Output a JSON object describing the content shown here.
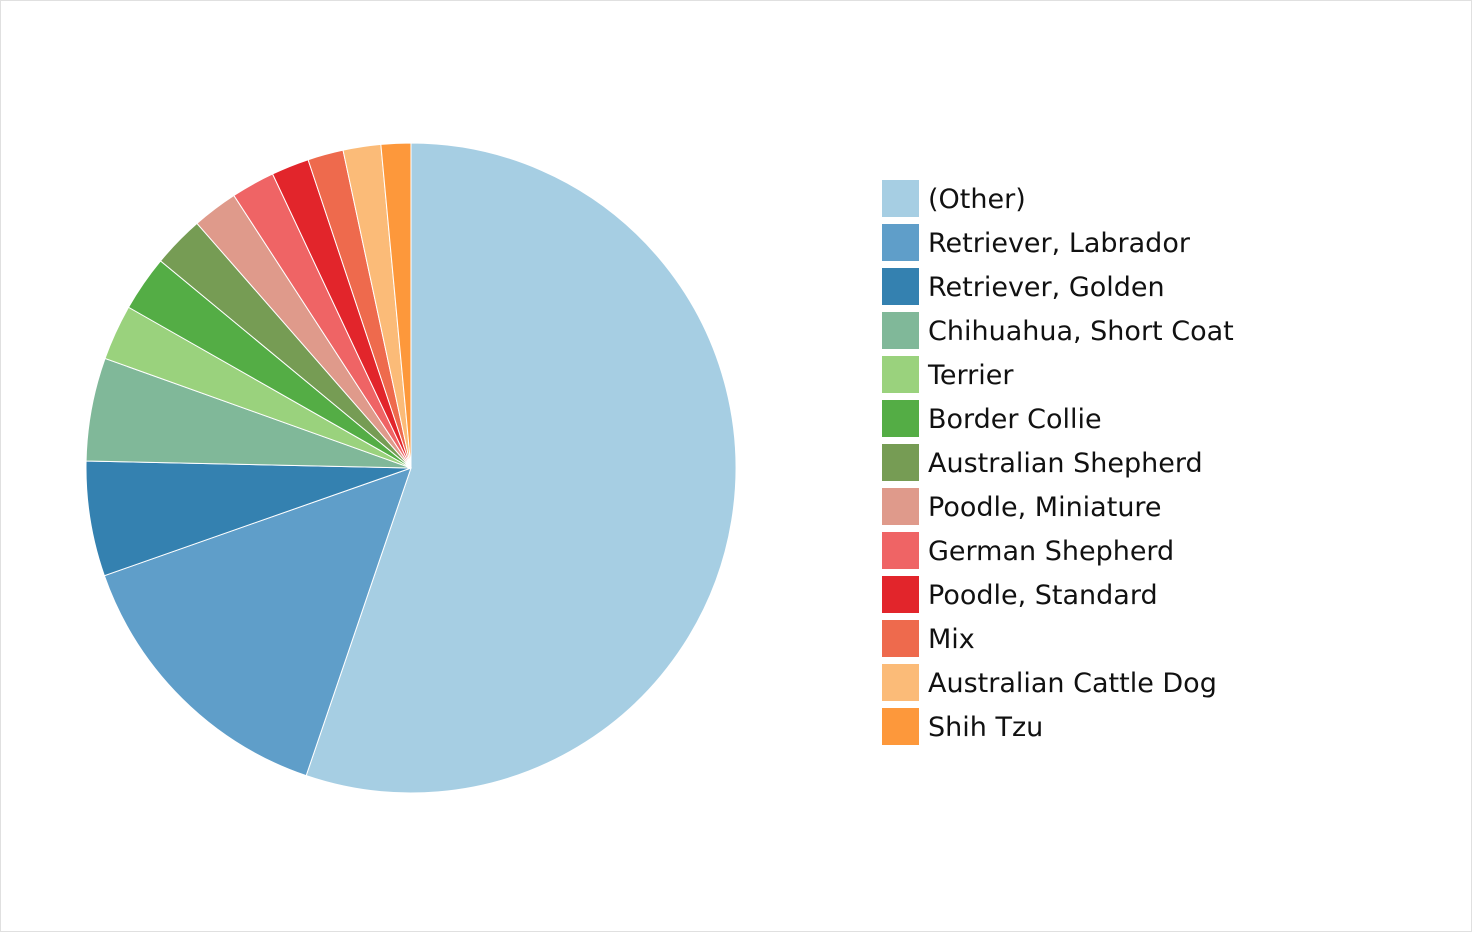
{
  "chart_data": {
    "type": "pie",
    "title": "",
    "start_angle_deg": 0,
    "direction": "clockwise",
    "slices": [
      {
        "label": "(Other)",
        "value": 56.0,
        "color": "#a6cee3"
      },
      {
        "label": "Retriever, Labrador",
        "value": 14.6,
        "color": "#5f9ec9"
      },
      {
        "label": "Retriever, Golden",
        "value": 5.8,
        "color": "#3481b0"
      },
      {
        "label": "Chihuahua, Short Coat",
        "value": 5.2,
        "color": "#80b899"
      },
      {
        "label": "Terrier",
        "value": 2.8,
        "color": "#9ad27d"
      },
      {
        "label": "Border Collie",
        "value": 2.8,
        "color": "#54ad45"
      },
      {
        "label": "Australian Shepherd",
        "value": 2.6,
        "color": "#769c54"
      },
      {
        "label": "Poodle, Miniature",
        "value": 2.3,
        "color": "#df9a8b"
      },
      {
        "label": "German Shepherd",
        "value": 2.2,
        "color": "#ef6465"
      },
      {
        "label": "Poodle, Standard",
        "value": 1.9,
        "color": "#e2252b"
      },
      {
        "label": "Mix",
        "value": 1.8,
        "color": "#ee6a4d"
      },
      {
        "label": "Australian Cattle Dog",
        "value": 1.9,
        "color": "#fbbb78"
      },
      {
        "label": "Shih Tzu",
        "value": 1.5,
        "color": "#fd983b"
      }
    ],
    "legend_position": "right"
  }
}
